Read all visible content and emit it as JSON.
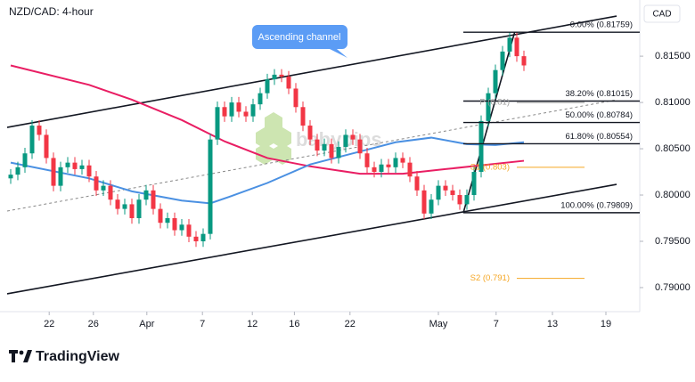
{
  "header": {
    "title": "NZD/CAD: 4-hour",
    "currency": "CAD"
  },
  "chart_data": {
    "type": "candlestick",
    "ylim": [
      0.7874,
      0.8203
    ],
    "yticks": [
      {
        "value": 0.815,
        "label": "0.81500"
      },
      {
        "value": 0.81,
        "label": "0.81000"
      },
      {
        "value": 0.805,
        "label": "0.80500"
      },
      {
        "value": 0.8,
        "label": "0.80000"
      },
      {
        "value": 0.795,
        "label": "0.79500"
      },
      {
        "value": 0.79,
        "label": "0.79000"
      }
    ],
    "xlim": [
      -1.5,
      88.25
    ],
    "xticks": [
      {
        "value": 5.4,
        "label": "22"
      },
      {
        "value": 11.6,
        "label": "26"
      },
      {
        "value": 19.1,
        "label": "Apr"
      },
      {
        "value": 26.9,
        "label": "7"
      },
      {
        "value": 33.9,
        "label": "12"
      },
      {
        "value": 39.8,
        "label": "16"
      },
      {
        "value": 47.6,
        "label": "22"
      },
      {
        "value": 60,
        "label": "May"
      },
      {
        "value": 68.1,
        "label": "7"
      },
      {
        "value": 76,
        "label": "13"
      },
      {
        "value": 83.5,
        "label": "19"
      }
    ],
    "up_color": "#089981",
    "down_color": "#f23645",
    "candles": [
      [
        0.8018,
        0.8028,
        0.8012,
        0.8022
      ],
      [
        0.8022,
        0.8036,
        0.8016,
        0.803
      ],
      [
        0.803,
        0.8051,
        0.8024,
        0.8045
      ],
      [
        0.8045,
        0.8081,
        0.8039,
        0.8075
      ],
      [
        0.8075,
        0.8081,
        0.8059,
        0.8065
      ],
      [
        0.8065,
        0.8071,
        0.8034,
        0.804
      ],
      [
        0.804,
        0.8046,
        0.8004,
        0.801
      ],
      [
        0.801,
        0.8036,
        0.8004,
        0.803
      ],
      [
        0.803,
        0.8041,
        0.8024,
        0.8035
      ],
      [
        0.8035,
        0.8041,
        0.8022,
        0.8028
      ],
      [
        0.8028,
        0.8038,
        0.8022,
        0.8032
      ],
      [
        0.8032,
        0.8038,
        0.8014,
        0.802
      ],
      [
        0.802,
        0.8026,
        0.7999,
        0.8005
      ],
      [
        0.8005,
        0.8016,
        0.7999,
        0.801
      ],
      [
        0.801,
        0.8016,
        0.7989,
        0.7995
      ],
      [
        0.7995,
        0.8001,
        0.7979,
        0.7985
      ],
      [
        0.7985,
        0.7996,
        0.7979,
        0.799
      ],
      [
        0.799,
        0.7996,
        0.7969,
        0.7975
      ],
      [
        0.7975,
        0.8001,
        0.7969,
        0.7995
      ],
      [
        0.7995,
        0.8011,
        0.7989,
        0.8005
      ],
      [
        0.8005,
        0.8011,
        0.7979,
        0.7985
      ],
      [
        0.7985,
        0.7991,
        0.7964,
        0.797
      ],
      [
        0.797,
        0.7981,
        0.7964,
        0.7975
      ],
      [
        0.7975,
        0.7981,
        0.7956,
        0.7962
      ],
      [
        0.7962,
        0.7974,
        0.7956,
        0.7968
      ],
      [
        0.7968,
        0.7974,
        0.7949,
        0.7955
      ],
      [
        0.7955,
        0.7961,
        0.7944,
        0.795
      ],
      [
        0.795,
        0.7964,
        0.7944,
        0.7958
      ],
      [
        0.7958,
        0.8066,
        0.7952,
        0.806
      ],
      [
        0.806,
        0.8101,
        0.8054,
        0.8095
      ],
      [
        0.8095,
        0.8101,
        0.8079,
        0.8085
      ],
      [
        0.8085,
        0.8106,
        0.8079,
        0.81
      ],
      [
        0.81,
        0.8106,
        0.8084,
        0.809
      ],
      [
        0.809,
        0.8096,
        0.8079,
        0.8085
      ],
      [
        0.8085,
        0.8104,
        0.8079,
        0.8098
      ],
      [
        0.8098,
        0.8116,
        0.8092,
        0.811
      ],
      [
        0.811,
        0.8131,
        0.8104,
        0.8125
      ],
      [
        0.8125,
        0.8136,
        0.8119,
        0.813
      ],
      [
        0.813,
        0.8136,
        0.8122,
        0.8128
      ],
      [
        0.8128,
        0.8134,
        0.8109,
        0.8115
      ],
      [
        0.8115,
        0.8121,
        0.8089,
        0.8095
      ],
      [
        0.8095,
        0.8101,
        0.8069,
        0.8075
      ],
      [
        0.8075,
        0.8081,
        0.8054,
        0.806
      ],
      [
        0.806,
        0.8066,
        0.8042,
        0.8048
      ],
      [
        0.8048,
        0.8061,
        0.8042,
        0.8055
      ],
      [
        0.8055,
        0.8061,
        0.8034,
        0.804
      ],
      [
        0.804,
        0.8058,
        0.8034,
        0.8052
      ],
      [
        0.8052,
        0.8071,
        0.8046,
        0.8065
      ],
      [
        0.8065,
        0.8071,
        0.8054,
        0.806
      ],
      [
        0.806,
        0.8066,
        0.8039,
        0.8045
      ],
      [
        0.8045,
        0.8051,
        0.8024,
        0.803
      ],
      [
        0.803,
        0.8036,
        0.8019,
        0.8025
      ],
      [
        0.8025,
        0.8039,
        0.8019,
        0.8033
      ],
      [
        0.8033,
        0.8039,
        0.8024,
        0.803
      ],
      [
        0.803,
        0.8046,
        0.8024,
        0.804
      ],
      [
        0.804,
        0.8046,
        0.8029,
        0.8035
      ],
      [
        0.8035,
        0.8041,
        0.8014,
        0.802
      ],
      [
        0.802,
        0.8026,
        0.7999,
        0.8005
      ],
      [
        0.8005,
        0.8011,
        0.7974,
        0.798
      ],
      [
        0.798,
        0.8001,
        0.7974,
        0.7995
      ],
      [
        0.7995,
        0.8016,
        0.7989,
        0.801
      ],
      [
        0.801,
        0.8016,
        0.7999,
        0.8005
      ],
      [
        0.8005,
        0.8011,
        0.7994,
        0.8
      ],
      [
        0.8,
        0.8006,
        0.7984,
        0.799
      ],
      [
        0.799,
        0.8006,
        0.7984,
        0.8
      ],
      [
        0.8,
        0.8031,
        0.7994,
        0.8025
      ],
      [
        0.8025,
        0.8086,
        0.8019,
        0.808
      ],
      [
        0.808,
        0.8116,
        0.8074,
        0.811
      ],
      [
        0.811,
        0.8141,
        0.8104,
        0.8135
      ],
      [
        0.8135,
        0.8161,
        0.8129,
        0.8155
      ],
      [
        0.8155,
        0.8176,
        0.8149,
        0.817
      ],
      [
        0.817,
        0.8176,
        0.8144,
        0.815
      ],
      [
        0.815,
        0.8156,
        0.8134,
        0.814
      ]
    ],
    "series": [
      {
        "color": "#e91e63",
        "x": [
          0,
          11,
          17,
          24,
          30,
          36,
          42,
          49,
          55,
          61,
          72
        ],
        "values": [
          0.814,
          0.8119,
          0.8103,
          0.8081,
          0.8058,
          0.804,
          0.8031,
          0.8023,
          0.8023,
          0.8028,
          0.8037
        ]
      },
      {
        "color": "#4a90e2",
        "x": [
          0,
          11,
          17,
          24,
          28,
          31,
          36,
          42,
          49,
          54,
          59,
          64,
          68,
          72
        ],
        "values": [
          0.8035,
          0.8018,
          0.8004,
          0.7994,
          0.7991,
          0.7999,
          0.8013,
          0.8033,
          0.8047,
          0.8057,
          0.8062,
          0.8055,
          0.8054,
          0.8057
        ]
      }
    ],
    "lines": [
      {
        "style": "solid",
        "x": [
          -0.5,
          85
        ],
        "values": [
          0.80731,
          0.81933
        ]
      },
      {
        "style": "solid",
        "x": [
          -0.5,
          85
        ],
        "values": [
          0.78933,
          0.80115
        ]
      },
      {
        "style": "dashed",
        "x": [
          -0.5,
          85
        ],
        "values": [
          0.79827,
          0.81029
        ]
      },
      {
        "style": "solid",
        "x": [
          63.5,
          70.7
        ],
        "values": [
          0.79809,
          0.81759
        ]
      }
    ],
    "fib_x": [
      63.5,
      88.25
    ],
    "fib_levels": [
      {
        "label": "0.00% (0.81759)",
        "value": 0.81759
      },
      {
        "label": "38.20% (0.81015)",
        "value": 0.81015
      },
      {
        "label": "50.00% (0.80784)",
        "value": 0.80784
      },
      {
        "label": "61.80% (0.80554)",
        "value": 0.80554
      },
      {
        "label": "100.00% (0.79809)",
        "value": 0.79809
      }
    ],
    "pivot_x": [
      71,
      80.5
    ],
    "pivots": [
      {
        "label": "P (0.81)",
        "value": 0.81,
        "color": "#9e9e9e"
      },
      {
        "label": "S1 (0.803)",
        "value": 0.803,
        "color": "#f5a623"
      },
      {
        "label": "S2 (0.791)",
        "value": 0.791,
        "color": "#f5a623"
      }
    ],
    "annotation": "Ascending channel",
    "watermark": "babypips"
  },
  "footer": {
    "brand": "TradingView"
  }
}
